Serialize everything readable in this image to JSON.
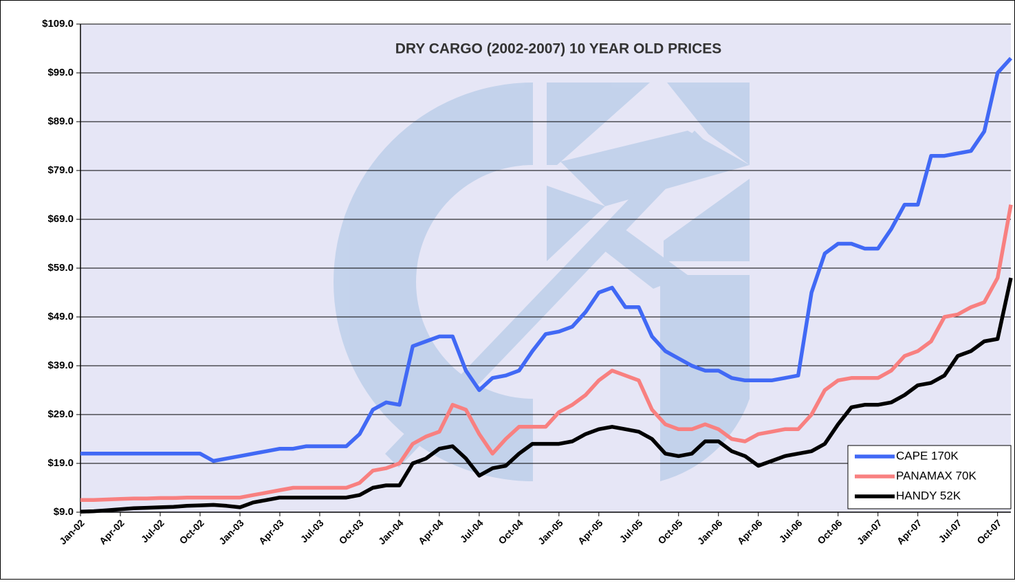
{
  "chart_data": {
    "type": "line",
    "title": "DRY CARGO (2002-2007) 10 YEAR OLD PRICES",
    "x": [
      "Jan-02",
      "Feb-02",
      "Mar-02",
      "Apr-02",
      "May-02",
      "Jun-02",
      "Jul-02",
      "Aug-02",
      "Sep-02",
      "Oct-02",
      "Nov-02",
      "Dec-02",
      "Jan-03",
      "Feb-03",
      "Mar-03",
      "Apr-03",
      "May-03",
      "Jun-03",
      "Jul-03",
      "Aug-03",
      "Sep-03",
      "Oct-03",
      "Nov-03",
      "Dec-03",
      "Jan-04",
      "Feb-04",
      "Mar-04",
      "Apr-04",
      "May-04",
      "Jun-04",
      "Jul-04",
      "Aug-04",
      "Sep-04",
      "Oct-04",
      "Nov-04",
      "Dec-04",
      "Jan-05",
      "Feb-05",
      "Mar-05",
      "Apr-05",
      "May-05",
      "Jun-05",
      "Jul-05",
      "Aug-05",
      "Sep-05",
      "Oct-05",
      "Nov-05",
      "Dec-05",
      "Jan-06",
      "Feb-06",
      "Mar-06",
      "Apr-06",
      "May-06",
      "Jun-06",
      "Jul-06",
      "Aug-06",
      "Sep-06",
      "Oct-06",
      "Nov-06",
      "Dec-06",
      "Jan-07",
      "Feb-07",
      "Mar-07",
      "Apr-07",
      "May-07",
      "Jun-07",
      "Jul-07",
      "Aug-07",
      "Sep-07",
      "Oct-07",
      "Nov-07"
    ],
    "xticks": [
      "Jan-02",
      "Apr-02",
      "Jul-02",
      "Oct-02",
      "Jan-03",
      "Apr-03",
      "Jul-03",
      "Oct-03",
      "Jan-04",
      "Apr-04",
      "Jul-04",
      "Oct-04",
      "Jan-05",
      "Apr-05",
      "Jul-05",
      "Oct-05",
      "Jan-06",
      "Apr-06",
      "Jul-06",
      "Oct-06",
      "Jan-07",
      "Apr-07",
      "Jul-07",
      "Oct-07"
    ],
    "series": [
      {
        "name": "CAPE 170K",
        "color": "#4169f5",
        "values": [
          21,
          21,
          21,
          21,
          21,
          21,
          21,
          21,
          21,
          21,
          19.5,
          20,
          20.5,
          21,
          21.5,
          22,
          22,
          22.5,
          22.5,
          22.5,
          22.5,
          25,
          30,
          31.5,
          31,
          43,
          44,
          45,
          45,
          38,
          34,
          36.5,
          37,
          38,
          42,
          45.5,
          46,
          47,
          50,
          54,
          55,
          51,
          51,
          45,
          42,
          40.5,
          39,
          38,
          38,
          36.5,
          36,
          36,
          36,
          36.5,
          37,
          54,
          62,
          64,
          64,
          63,
          63,
          67,
          72,
          72,
          82,
          82,
          82.5,
          83,
          87,
          99,
          102
        ]
      },
      {
        "name": "PANAMAX 70K",
        "color": "#f88080",
        "values": [
          11.5,
          11.5,
          11.6,
          11.7,
          11.8,
          11.8,
          11.9,
          11.9,
          12,
          12,
          12,
          12,
          12,
          12.5,
          13,
          13.5,
          14,
          14,
          14,
          14,
          14,
          15,
          17.5,
          18,
          19,
          23,
          24.5,
          25.5,
          31,
          30,
          25,
          21,
          24,
          26.5,
          26.5,
          26.5,
          29.5,
          31,
          33,
          36,
          38,
          37,
          36,
          30,
          27,
          26,
          26,
          27,
          26,
          24,
          23.5,
          25,
          25.5,
          26,
          26,
          29,
          34,
          36,
          36.5,
          36.5,
          36.5,
          38,
          41,
          42,
          44,
          49,
          49.5,
          51,
          52,
          57,
          72
        ]
      },
      {
        "name": "HANDY 52K",
        "color": "#000000",
        "values": [
          9.1,
          9.2,
          9.4,
          9.6,
          9.8,
          9.9,
          10,
          10.1,
          10.3,
          10.4,
          10.5,
          10.3,
          10,
          11,
          11.5,
          12,
          12,
          12,
          12,
          12,
          12,
          12.5,
          14,
          14.5,
          14.5,
          19,
          20,
          22,
          22.5,
          20,
          16.5,
          18,
          18.5,
          21,
          23,
          23,
          23,
          23.5,
          25,
          26,
          26.5,
          26,
          25.5,
          24,
          21,
          20.5,
          21,
          23.5,
          23.5,
          21.5,
          20.5,
          18.5,
          19.5,
          20.5,
          21,
          21.5,
          23,
          27,
          30.5,
          31,
          31,
          31.5,
          33,
          35,
          35.5,
          37,
          41,
          42,
          44,
          44.5,
          57
        ]
      }
    ],
    "ylim": [
      9,
      109
    ],
    "yticks": [
      {
        "value": 9,
        "label": "$9.0"
      },
      {
        "value": 19,
        "label": "$19.0"
      },
      {
        "value": 29,
        "label": "$29.0"
      },
      {
        "value": 39,
        "label": "$39.0"
      },
      {
        "value": 49,
        "label": "$49.0"
      },
      {
        "value": 59,
        "label": "$59.0"
      },
      {
        "value": 69,
        "label": "$69.0"
      },
      {
        "value": 79,
        "label": "$79.0"
      },
      {
        "value": 89,
        "label": "$89.0"
      },
      {
        "value": 99,
        "label": "$99.0"
      },
      {
        "value": 109,
        "label": "$109.0"
      }
    ],
    "grid": true,
    "legend": "lower right"
  }
}
